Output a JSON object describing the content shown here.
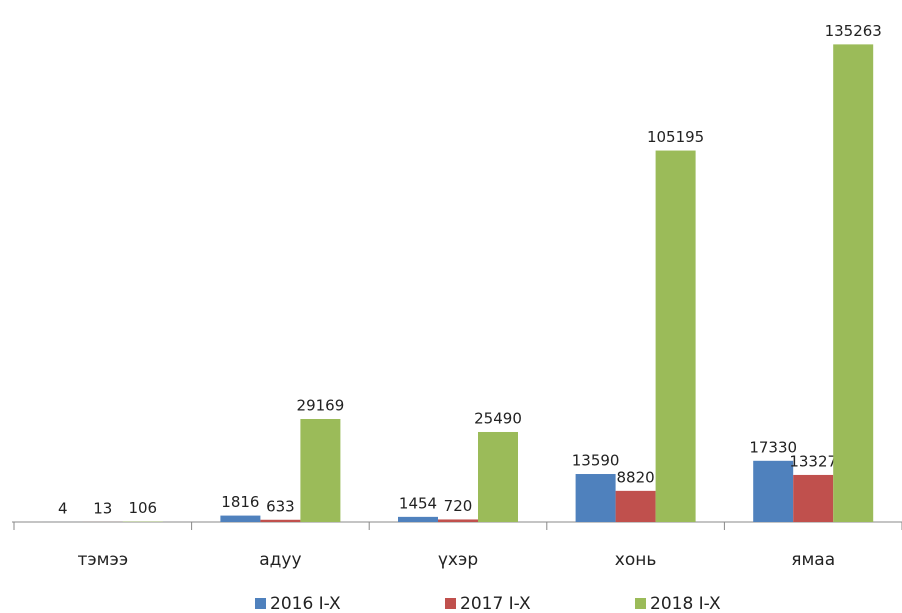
{
  "chart_data": {
    "type": "bar",
    "categories": [
      "тэмээ",
      "адуу",
      "үхэр",
      "хонь",
      "ямаа"
    ],
    "series": [
      {
        "name": "2016 I-X",
        "color": "#4f81bd",
        "values": [
          4,
          1816,
          1454,
          13590,
          17330
        ]
      },
      {
        "name": "2017 I-X",
        "color": "#c0504d",
        "values": [
          13,
          633,
          720,
          8820,
          13327
        ]
      },
      {
        "name": "2018 I-X",
        "color": "#9bbb59",
        "values": [
          106,
          29169,
          25490,
          105195,
          135263
        ]
      }
    ],
    "ylim": [
      0,
      145000
    ],
    "legend": "bottom"
  }
}
